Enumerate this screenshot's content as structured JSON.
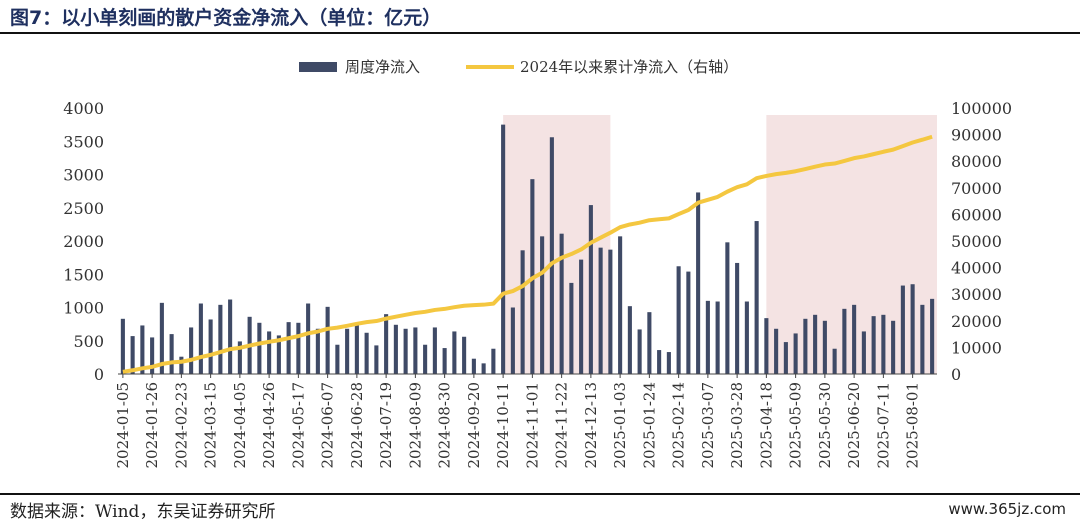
{
  "header": {
    "title": "图7：以小单刻画的散户资金净流入（单位：亿元）"
  },
  "footer": {
    "source": "数据来源：Wind，东吴证券研究所",
    "watermark": "www.365jz.com"
  },
  "colors": {
    "bar": "#3f4a66",
    "line": "#f4c740",
    "shade": "#f2dede",
    "axis": "#444444"
  },
  "chart_data": {
    "type": "bar",
    "legend_position": "top-center",
    "grid": false,
    "legend": [
      "周度净流入",
      "2024年以来累计净流入（右轴）"
    ],
    "series": [
      {
        "name": "周度净流入",
        "type": "bar",
        "axis": "left",
        "values": [
          830,
          570,
          730,
          550,
          1070,
          600,
          260,
          700,
          1060,
          820,
          1040,
          1120,
          490,
          860,
          770,
          640,
          580,
          780,
          770,
          1060,
          680,
          1010,
          440,
          680,
          760,
          620,
          430,
          900,
          740,
          680,
          700,
          440,
          700,
          390,
          640,
          560,
          230,
          160,
          380,
          3750,
          1000,
          1860,
          2930,
          2070,
          3560,
          2110,
          1370,
          1720,
          2540,
          1900,
          1870,
          2070,
          1020,
          670,
          930,
          360,
          330,
          1620,
          1540,
          2730,
          1100,
          1090,
          1980,
          1670,
          1090,
          2300,
          840,
          680,
          480,
          610,
          830,
          890,
          800,
          380,
          980,
          1040,
          640,
          870,
          890,
          800,
          1330,
          1350,
          1040,
          1130
        ]
      },
      {
        "name": "2024年以来累计净流入（右轴）",
        "type": "line",
        "axis": "right",
        "values": [
          830,
          1400,
          2130,
          2680,
          3750,
          4350,
          4610,
          5310,
          6370,
          7190,
          8230,
          9350,
          9840,
          10700,
          11470,
          12110,
          12690,
          13470,
          14240,
          15300,
          15980,
          16990,
          17430,
          18110,
          18870,
          19490,
          19920,
          20820,
          21560,
          22240,
          22940,
          23380,
          24080,
          24470,
          25110,
          25670,
          25900,
          26060,
          26440,
          30190,
          31190,
          33050,
          35980,
          38050,
          41610,
          43720,
          45090,
          46810,
          49350,
          51250,
          53120,
          55190,
          56210,
          56880,
          57810,
          58170,
          58500,
          60120,
          61660,
          64390,
          65490,
          66580,
          68560,
          70230,
          71320,
          73620,
          74460,
          75140,
          75620,
          76230,
          77060,
          77950,
          78750,
          79130,
          80110,
          81150,
          81790,
          82660,
          83550,
          84350,
          85680,
          87030,
          88070,
          89200
        ]
      }
    ],
    "x_tick_labels": [
      "2024-01-05",
      "2024-01-26",
      "2024-02-23",
      "2024-03-15",
      "2024-04-05",
      "2024-04-26",
      "2024-05-17",
      "2024-06-07",
      "2024-06-28",
      "2024-07-19",
      "2024-08-09",
      "2024-08-30",
      "2024-09-20",
      "2024-10-11",
      "2024-11-01",
      "2024-11-22",
      "2024-12-13",
      "2025-01-03",
      "2025-01-24",
      "2025-02-14",
      "2025-03-07",
      "2025-03-28",
      "2025-04-18",
      "2025-05-09",
      "2025-05-30",
      "2025-06-20",
      "2025-07-11",
      "2025-08-01"
    ],
    "y_left": {
      "min": 0,
      "max": 4000,
      "ticks": [
        "0",
        "500",
        "1000",
        "1500",
        "2000",
        "2500",
        "3000",
        "3500",
        "4000"
      ]
    },
    "y_right": {
      "min": 0,
      "max": 100000,
      "ticks": [
        "0",
        "10000",
        "20000",
        "30000",
        "40000",
        "50000",
        "60000",
        "70000",
        "80000",
        "90000",
        "100000"
      ]
    },
    "shaded_periods": [
      {
        "start": "2024-10-04",
        "end": "2024-12-20"
      },
      {
        "start": "2025-04-11",
        "end": "2025-08-22"
      }
    ]
  }
}
